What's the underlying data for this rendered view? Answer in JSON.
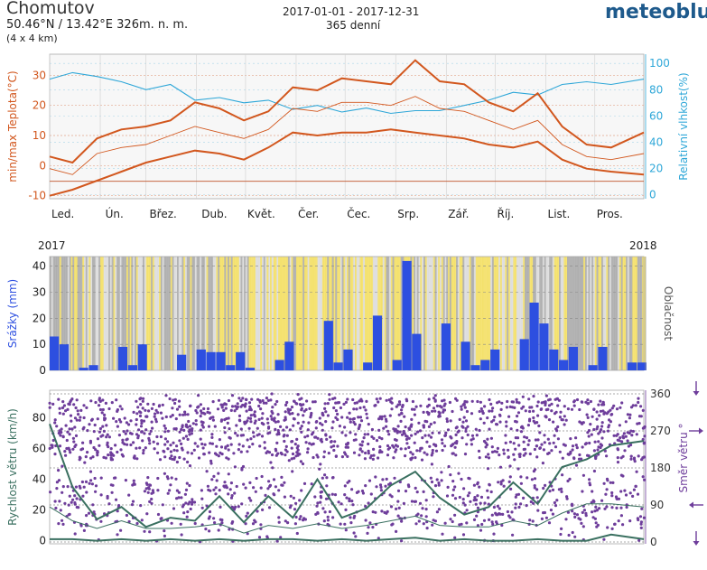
{
  "header": {
    "place": "Chomutov",
    "coordinates_text": "50.46°N / 13.42°E   326m. n. m.",
    "grid_text": "(4 x 4 km)",
    "date_range": "2017-01-01 - 2017-12-31",
    "days_text": "365 denní",
    "brand": "meteoblue"
  },
  "colors": {
    "temp": "#d2571e",
    "temp_thin": "#d2571e",
    "humidity": "#2ea7d8",
    "precip": "#2d4fe0",
    "sun": "#f2d94a",
    "cloud": "#9c9c9c",
    "wind_dir": "#6e3d9b",
    "wind_speed": "#3a7060",
    "axis_left_temp": "#d2571e",
    "axis_right_hum": "#2ea7d8",
    "axis_precip": "#2d4fe0",
    "axis_wind": "#3a7060",
    "axis_dir": "#6e3d9b"
  },
  "month_labels": [
    "Led.",
    "Ún.",
    "Břez.",
    "Dub.",
    "Květ.",
    "Čer.",
    "Čec.",
    "Srp.",
    "Zář.",
    "Říj.",
    "List.",
    "Pros."
  ],
  "year_start": "2017",
  "year_end": "2018",
  "chart_data": [
    {
      "type": "line",
      "x": [
        1,
        15,
        30,
        45,
        60,
        75,
        90,
        105,
        120,
        135,
        150,
        165,
        180,
        195,
        210,
        225,
        240,
        255,
        270,
        285,
        300,
        315,
        330,
        345,
        365
      ],
      "series": [
        {
          "name": "max",
          "values": [
            3,
            1,
            9,
            12,
            13,
            15,
            21,
            19,
            15,
            18,
            26,
            25,
            29,
            28,
            27,
            35,
            28,
            27,
            21,
            18,
            24,
            13,
            7,
            6,
            11
          ]
        },
        {
          "name": "mean",
          "values": [
            -1,
            -3,
            4,
            6,
            7,
            10,
            13,
            11,
            9,
            12,
            19,
            18,
            21,
            21,
            20,
            23,
            19,
            18,
            15,
            12,
            15,
            7,
            3,
            2,
            4
          ]
        },
        {
          "name": "min",
          "values": [
            -10,
            -8,
            -5,
            -2,
            1,
            3,
            5,
            4,
            2,
            6,
            11,
            10,
            11,
            11,
            12,
            11,
            10,
            9,
            7,
            6,
            8,
            2,
            -1,
            -2,
            -3
          ]
        },
        {
          "name": "humidity",
          "values": [
            88,
            93,
            90,
            86,
            80,
            84,
            72,
            74,
            70,
            72,
            65,
            68,
            63,
            66,
            62,
            64,
            64,
            68,
            72,
            78,
            76,
            84,
            86,
            84,
            88
          ]
        }
      ],
      "ylabel": "min/max Teplota(°C)",
      "y2label": "Relativní vlhkost(%)",
      "ylim": [
        -11,
        37
      ],
      "y2lim": [
        -3,
        107
      ],
      "yticks": [
        "30",
        "20",
        "10",
        "0",
        "-10"
      ],
      "y2ticks": [
        "100",
        "80",
        "60",
        "40",
        "20",
        "0"
      ]
    },
    {
      "type": "bar",
      "x": [
        1,
        7,
        13,
        19,
        25,
        31,
        37,
        43,
        49,
        55,
        61,
        67,
        73,
        79,
        85,
        91,
        97,
        103,
        109,
        115,
        121,
        127,
        133,
        139,
        145,
        151,
        157,
        163,
        169,
        175,
        181,
        187,
        193,
        199,
        205,
        211,
        217,
        223,
        229,
        235,
        241,
        247,
        253,
        259,
        265,
        271,
        277,
        283,
        289,
        295,
        301,
        307,
        313,
        319,
        325,
        331,
        337,
        343,
        349,
        355,
        361
      ],
      "values": [
        13,
        10,
        0,
        1,
        2,
        0,
        0,
        9,
        2,
        10,
        0,
        0,
        0,
        6,
        0,
        8,
        7,
        7,
        2,
        7,
        1,
        0,
        0,
        4,
        11,
        0,
        0,
        0,
        19,
        3,
        8,
        0,
        3,
        21,
        0,
        4,
        42,
        14,
        0,
        0,
        18,
        0,
        11,
        2,
        4,
        8,
        0,
        0,
        12,
        26,
        18,
        8,
        4,
        9,
        0,
        2,
        9,
        0,
        0,
        3,
        3
      ],
      "ylabel": "Srážky (mm)",
      "y2label": "Oblačnost",
      "ylim": [
        0,
        43
      ],
      "yticks": [
        "40",
        "30",
        "20",
        "10",
        "0"
      ]
    },
    {
      "type": "line",
      "x": [
        1,
        15,
        30,
        45,
        60,
        75,
        90,
        105,
        120,
        135,
        150,
        165,
        180,
        195,
        210,
        225,
        240,
        255,
        270,
        285,
        300,
        315,
        330,
        345,
        365
      ],
      "series": [
        {
          "name": "max",
          "values": [
            76,
            35,
            14,
            22,
            9,
            15,
            13,
            29,
            12,
            29,
            15,
            40,
            15,
            21,
            36,
            45,
            28,
            17,
            22,
            38,
            24,
            48,
            53,
            62,
            65
          ]
        },
        {
          "name": "mean",
          "values": [
            22,
            13,
            8,
            13,
            8,
            8,
            9,
            11,
            5,
            10,
            8,
            11,
            8,
            10,
            13,
            16,
            10,
            9,
            9,
            13,
            10,
            18,
            24,
            24,
            22
          ]
        },
        {
          "name": "min",
          "values": [
            1,
            1,
            0,
            1,
            0,
            1,
            0,
            1,
            0,
            1,
            1,
            0,
            1,
            0,
            1,
            2,
            0,
            1,
            0,
            0,
            1,
            0,
            0,
            4,
            1
          ]
        }
      ],
      "ylabel": "Rychlost větru (km/h)",
      "y2label": "Směr větru °",
      "ylim": [
        -2,
        98
      ],
      "y2lim": [
        0,
        360
      ],
      "yticks": [
        "80",
        "60",
        "40",
        "20",
        "0"
      ],
      "y2ticks": [
        "360",
        "270",
        "180",
        "90",
        "0"
      ]
    }
  ]
}
